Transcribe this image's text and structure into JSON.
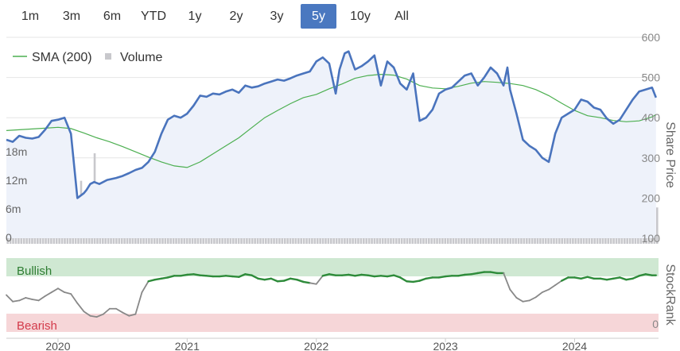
{
  "toolbar": {
    "buttons": [
      {
        "label": "1m",
        "active": false
      },
      {
        "label": "3m",
        "active": false
      },
      {
        "label": "6m",
        "active": false
      },
      {
        "label": "YTD",
        "active": false
      },
      {
        "label": "1y",
        "active": false
      },
      {
        "label": "2y",
        "active": false
      },
      {
        "label": "3y",
        "active": false
      },
      {
        "label": "5y",
        "active": true
      },
      {
        "label": "10y",
        "active": false
      },
      {
        "label": "All",
        "active": false
      }
    ]
  },
  "legend": {
    "sma_label": "SMA (200)",
    "volume_label": "Volume"
  },
  "colors": {
    "price": "#4a74bd",
    "price_fill": "#eef2fa",
    "sma": "#4caf50",
    "volume": "#c8c8cc",
    "rank_line": "#888888",
    "rank_bullish": "#2e8b3a",
    "bullish_band": "#cfe8d2",
    "bearish_band": "#f6d6d8",
    "bullish_text": "#2e7d32",
    "bearish_text": "#d33a4a",
    "active_button": "#4a78c0"
  },
  "chart_data": [
    {
      "type": "line",
      "title": "",
      "y_axis_title": "Share Price",
      "y_ticks": [
        100,
        200,
        300,
        400,
        500,
        600
      ],
      "ylim": [
        100,
        600
      ],
      "volume_ticks": [
        "0",
        "6m",
        "12m",
        "18m"
      ],
      "volume_ylim": [
        0,
        20
      ],
      "x_ticks": [
        "2020",
        "2021",
        "2022",
        "2023",
        "2024"
      ],
      "xlim": [
        2019.6,
        2024.65
      ],
      "series": [
        {
          "name": "",
          "x": [
            2019.6,
            2019.65,
            2019.7,
            2019.75,
            2019.8,
            2019.85,
            2019.9,
            2019.95,
            2020.0,
            2020.05,
            2020.1,
            2020.15,
            2020.2,
            2020.22,
            2020.25,
            2020.28,
            2020.32,
            2020.38,
            2020.45,
            2020.5,
            2020.55,
            2020.6,
            2020.65,
            2020.7,
            2020.75,
            2020.8,
            2020.85,
            2020.9,
            2020.95,
            2021.0,
            2021.05,
            2021.1,
            2021.15,
            2021.2,
            2021.25,
            2021.3,
            2021.35,
            2021.4,
            2021.45,
            2021.5,
            2021.55,
            2021.6,
            2021.65,
            2021.7,
            2021.75,
            2021.8,
            2021.85,
            2021.9,
            2021.95,
            2022.0,
            2022.05,
            2022.1,
            2022.15,
            2022.18,
            2022.22,
            2022.25,
            2022.3,
            2022.35,
            2022.4,
            2022.45,
            2022.5,
            2022.55,
            2022.6,
            2022.65,
            2022.7,
            2022.75,
            2022.8,
            2022.85,
            2022.9,
            2022.95,
            2023.0,
            2023.05,
            2023.1,
            2023.15,
            2023.2,
            2023.25,
            2023.3,
            2023.35,
            2023.4,
            2023.45,
            2023.48,
            2023.5,
            2023.55,
            2023.6,
            2023.65,
            2023.7,
            2023.75,
            2023.8,
            2023.85,
            2023.9,
            2023.95,
            2024.0,
            2024.05,
            2024.1,
            2024.15,
            2024.2,
            2024.25,
            2024.3,
            2024.35,
            2024.4,
            2024.45,
            2024.5,
            2024.55,
            2024.6,
            2024.63
          ],
          "y": [
            345,
            340,
            355,
            350,
            348,
            352,
            370,
            392,
            395,
            400,
            360,
            200,
            212,
            220,
            235,
            240,
            235,
            245,
            250,
            255,
            262,
            270,
            275,
            290,
            315,
            360,
            395,
            405,
            400,
            410,
            430,
            455,
            452,
            460,
            458,
            465,
            470,
            462,
            480,
            475,
            478,
            485,
            490,
            495,
            492,
            498,
            505,
            510,
            515,
            540,
            550,
            535,
            460,
            520,
            560,
            565,
            520,
            528,
            540,
            555,
            480,
            540,
            525,
            485,
            470,
            510,
            392,
            400,
            420,
            460,
            470,
            475,
            490,
            505,
            510,
            480,
            500,
            525,
            510,
            480,
            525,
            470,
            410,
            345,
            330,
            320,
            300,
            290,
            360,
            400,
            410,
            420,
            445,
            440,
            425,
            420,
            398,
            385,
            395,
            420,
            445,
            465,
            470,
            475,
            450
          ]
        },
        {
          "name": "",
          "x": [
            2019.6,
            2019.7,
            2019.8,
            2019.9,
            2020.0,
            2020.1,
            2020.2,
            2020.3,
            2020.4,
            2020.5,
            2020.6,
            2020.7,
            2020.8,
            2020.9,
            2021.0,
            2021.1,
            2021.2,
            2021.3,
            2021.4,
            2021.5,
            2021.6,
            2021.7,
            2021.8,
            2021.9,
            2022.0,
            2022.1,
            2022.2,
            2022.3,
            2022.4,
            2022.5,
            2022.6,
            2022.7,
            2022.8,
            2022.9,
            2023.0,
            2023.1,
            2023.2,
            2023.3,
            2023.4,
            2023.5,
            2023.6,
            2023.7,
            2023.8,
            2023.9,
            2024.0,
            2024.1,
            2024.2,
            2024.3,
            2024.4,
            2024.5,
            2024.6,
            2024.63
          ],
          "y": [
            368,
            370,
            372,
            374,
            376,
            373,
            362,
            350,
            340,
            328,
            315,
            302,
            290,
            280,
            276,
            290,
            310,
            330,
            350,
            375,
            400,
            418,
            435,
            450,
            458,
            472,
            484,
            498,
            505,
            508,
            506,
            496,
            480,
            474,
            472,
            478,
            486,
            490,
            488,
            485,
            480,
            470,
            455,
            436,
            418,
            405,
            400,
            393,
            390,
            392,
            402,
            408
          ]
        }
      ]
    },
    {
      "type": "line",
      "title": "",
      "y_axis_title": "StockRank",
      "y_ticks": [
        0
      ],
      "ylim": [
        0,
        100
      ],
      "band_labels": [
        "Bullish",
        "Bearish"
      ],
      "x": [
        2019.6,
        2019.65,
        2019.7,
        2019.75,
        2019.8,
        2019.85,
        2019.9,
        2019.95,
        2020.0,
        2020.05,
        2020.1,
        2020.15,
        2020.2,
        2020.25,
        2020.3,
        2020.35,
        2020.4,
        2020.45,
        2020.5,
        2020.55,
        2020.6,
        2020.65,
        2020.7,
        2020.75,
        2020.8,
        2020.85,
        2020.9,
        2020.95,
        2021.0,
        2021.05,
        2021.1,
        2021.15,
        2021.2,
        2021.25,
        2021.3,
        2021.35,
        2021.4,
        2021.45,
        2021.5,
        2021.55,
        2021.6,
        2021.65,
        2021.7,
        2021.75,
        2021.8,
        2021.85,
        2021.9,
        2021.95,
        2022.0,
        2022.05,
        2022.1,
        2022.15,
        2022.2,
        2022.25,
        2022.3,
        2022.35,
        2022.4,
        2022.45,
        2022.5,
        2022.55,
        2022.6,
        2022.65,
        2022.7,
        2022.75,
        2022.8,
        2022.85,
        2022.9,
        2022.95,
        2023.0,
        2023.05,
        2023.1,
        2023.15,
        2023.2,
        2023.25,
        2023.3,
        2023.35,
        2023.4,
        2023.45,
        2023.5,
        2023.55,
        2023.6,
        2023.65,
        2023.7,
        2023.75,
        2023.8,
        2023.85,
        2023.9,
        2023.95,
        2024.0,
        2024.05,
        2024.1,
        2024.15,
        2024.2,
        2024.25,
        2024.3,
        2024.35,
        2024.4,
        2024.45,
        2024.5,
        2024.55,
        2024.6,
        2024.63
      ],
      "series": [
        {
          "name": "",
          "values": [
            50,
            38,
            40,
            45,
            42,
            40,
            48,
            55,
            62,
            55,
            52,
            35,
            20,
            12,
            10,
            15,
            25,
            25,
            18,
            12,
            15,
            55,
            75,
            78,
            80,
            82,
            85,
            85,
            87,
            88,
            86,
            85,
            84,
            84,
            85,
            84,
            83,
            88,
            86,
            80,
            78,
            80,
            75,
            76,
            80,
            78,
            74,
            72,
            70,
            85,
            88,
            86,
            86,
            87,
            85,
            87,
            86,
            84,
            85,
            84,
            86,
            82,
            75,
            74,
            76,
            80,
            82,
            82,
            84,
            85,
            85,
            87,
            88,
            90,
            92,
            92,
            90,
            90,
            60,
            45,
            38,
            40,
            46,
            55,
            60,
            68,
            76,
            82,
            82,
            80,
            83,
            80,
            80,
            78,
            80,
            82,
            78,
            80,
            85,
            88,
            86,
            86
          ]
        }
      ]
    }
  ]
}
